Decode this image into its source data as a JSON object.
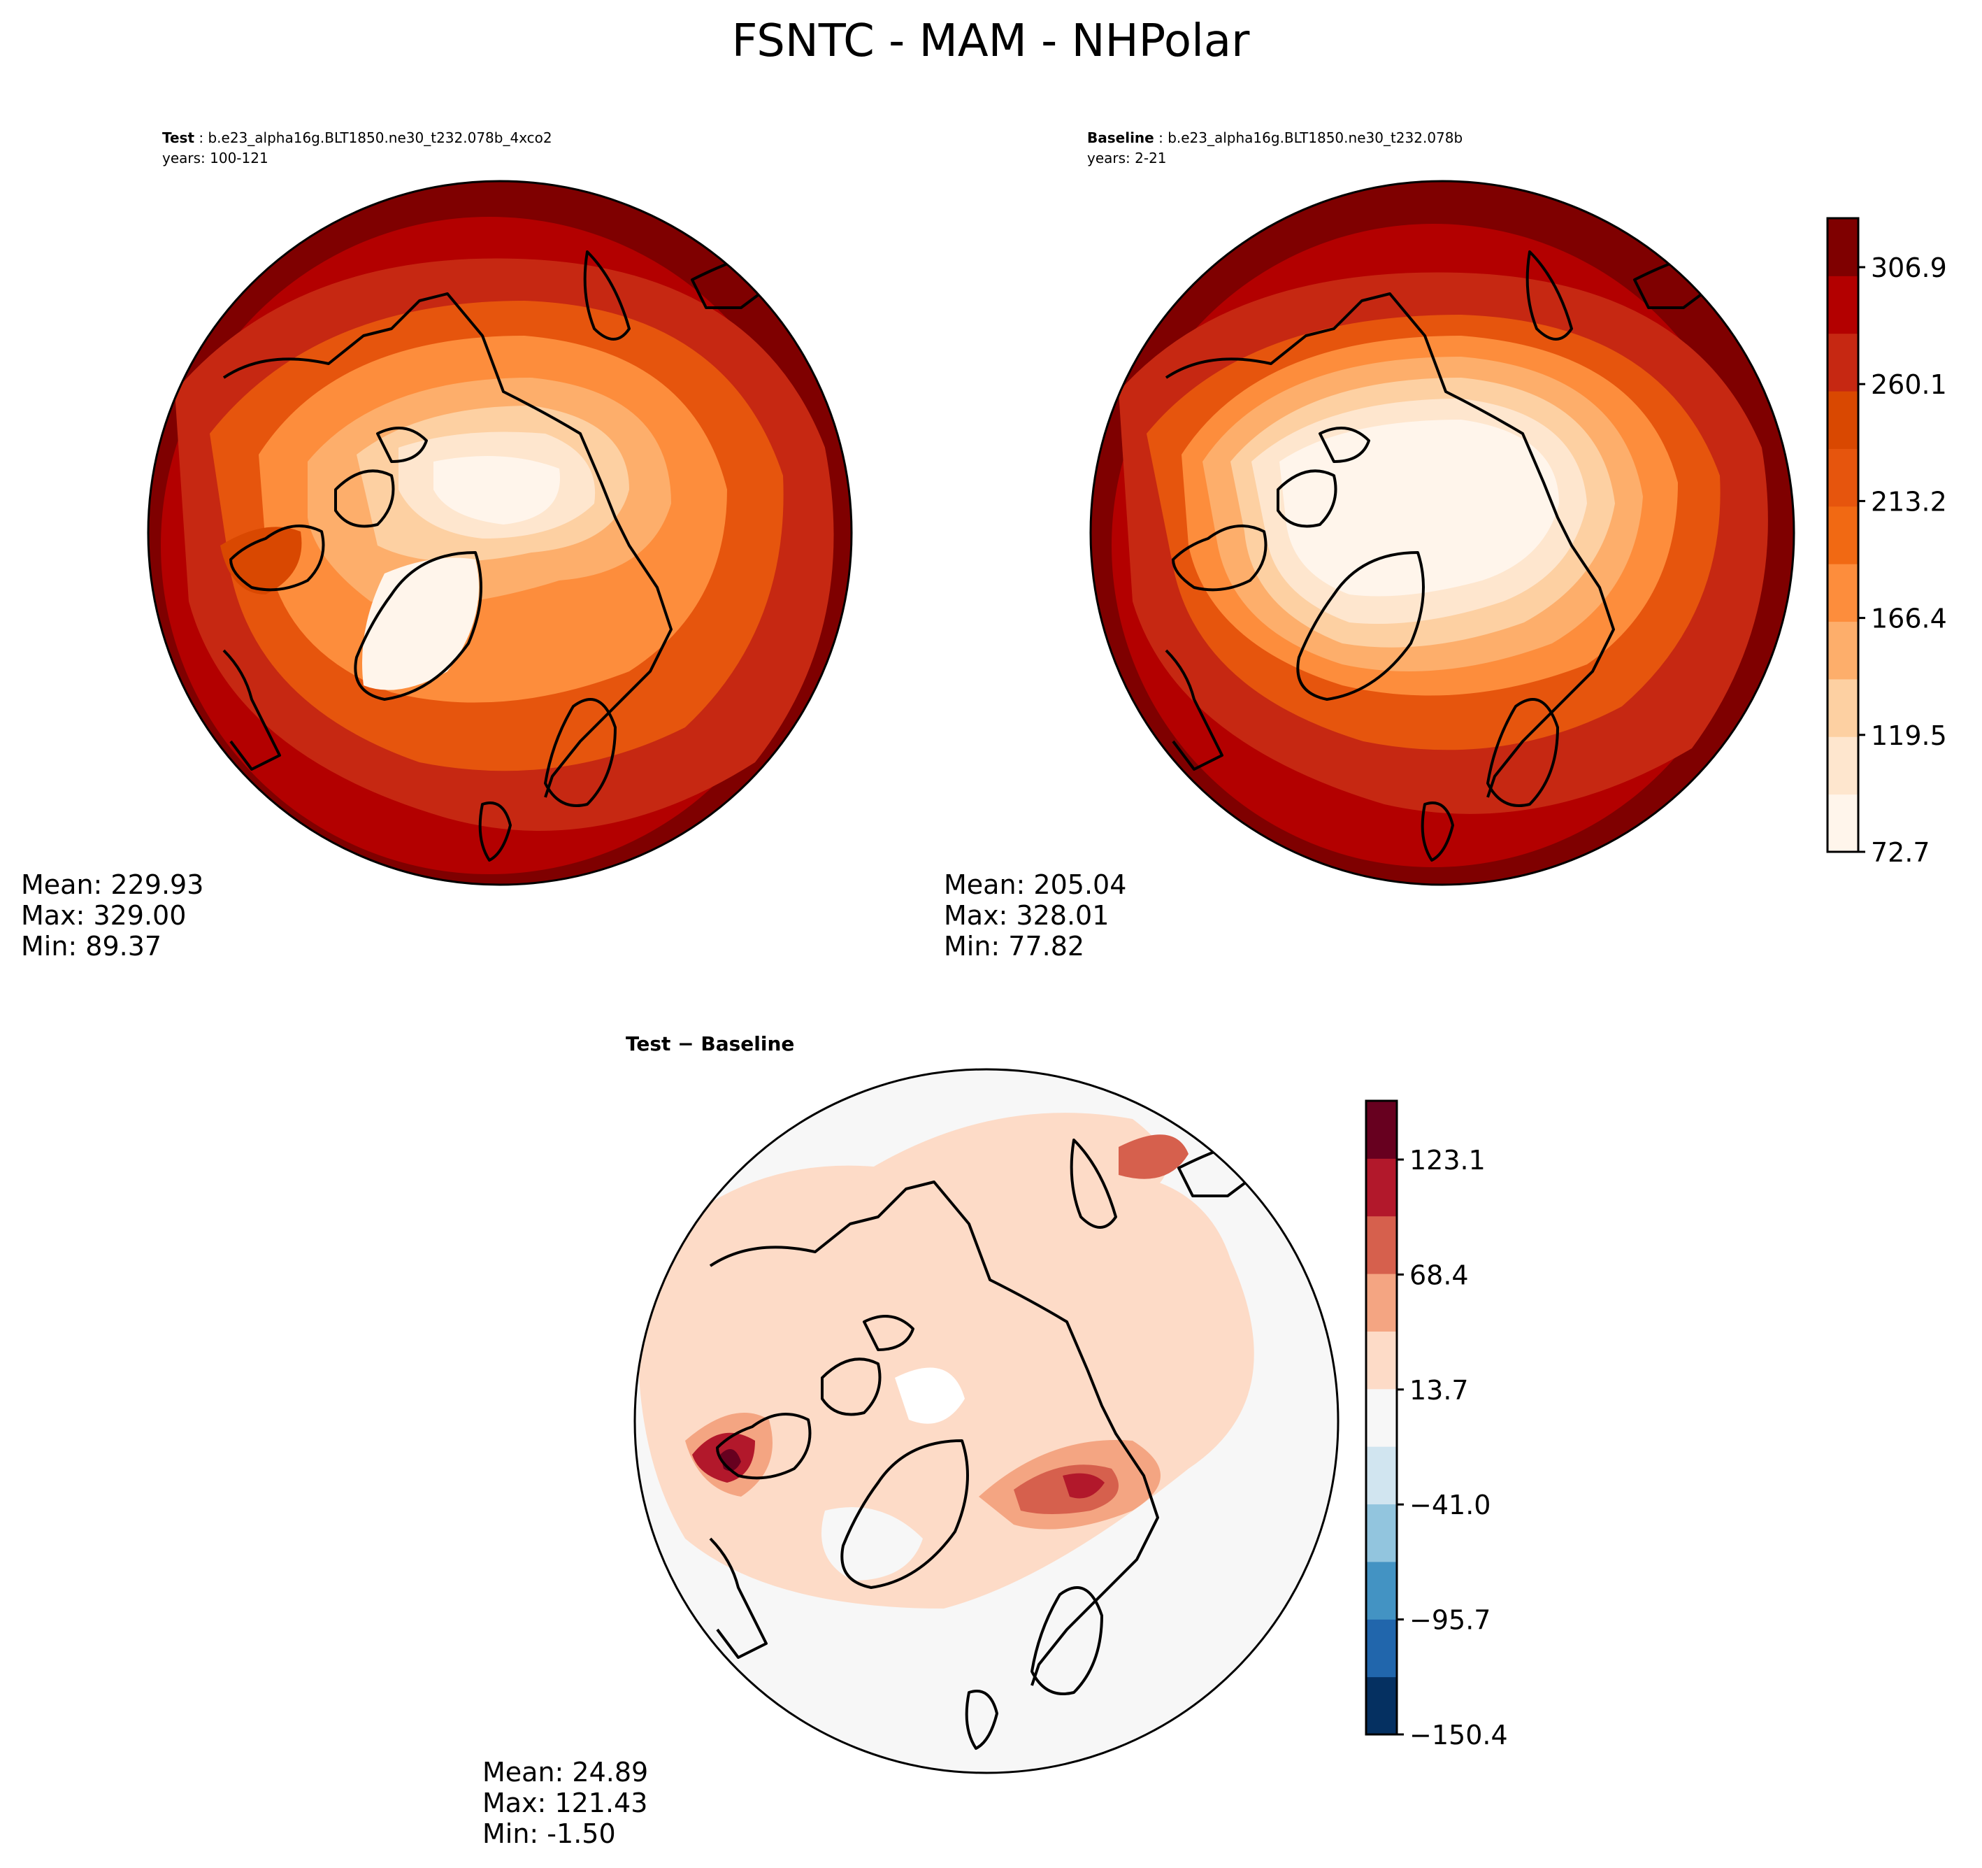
{
  "title": "FSNTC - MAM - NHPolar",
  "panels": [
    {
      "id": "test",
      "header_bold": "Test",
      "header_rest": " : b.e23_alpha16g.BLT1850.ne30_t232.078b_4xco2",
      "years": "years: 100-121",
      "stats": {
        "mean": "Mean: 229.93",
        "max": "Max: 329.00",
        "min": "Min: 89.37"
      },
      "levels": [
        90,
        130,
        155,
        180,
        205,
        230,
        250,
        272,
        295,
        318
      ]
    },
    {
      "id": "baseline",
      "header_bold": "Baseline",
      "header_rest": " : b.e23_alpha16g.BLT1850.ne30_t232.078b",
      "years": "years: 2-21",
      "stats": {
        "mean": "Mean: 205.04",
        "max": "Max: 328.01",
        "min": "Min: 77.82"
      },
      "levels": [
        78,
        110,
        130,
        155,
        185,
        215,
        245,
        270,
        295,
        318
      ]
    },
    {
      "id": "diff",
      "header": "Test − Baseline",
      "stats": {
        "mean": "Mean: 24.89",
        "max": "Max: 121.43",
        "min": "Min: -1.50"
      }
    }
  ],
  "colorbars": [
    {
      "id": "main",
      "tick_labels": [
        "306.9",
        "260.1",
        "213.2",
        "166.4",
        "119.5",
        "72.7"
      ],
      "colors": [
        "#fff5eb",
        "#fee6ce",
        "#fdd0a2",
        "#fdae6b",
        "#fd8d3c",
        "#f16913",
        "#e6550d",
        "#d94801",
        "#c62812",
        "#b30000",
        "#7f0000"
      ],
      "range": [
        72.7,
        330.1
      ]
    },
    {
      "id": "diff",
      "tick_labels": [
        "123.1",
        "68.4",
        "13.7",
        "−41.0",
        "−95.7",
        "−150.4"
      ],
      "colors": [
        "#053061",
        "#2166ac",
        "#4393c3",
        "#92c5de",
        "#d1e5f0",
        "#f7f7f7",
        "#fddbc7",
        "#f4a582",
        "#d6604d",
        "#b2182b",
        "#67001f"
      ],
      "range": [
        -150.4,
        150.5
      ]
    }
  ]
}
